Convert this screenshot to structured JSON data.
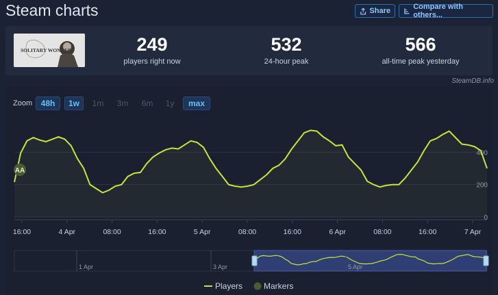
{
  "header": {
    "title": "Steam charts",
    "share_label": "Share",
    "compare_label": "Compare with others..."
  },
  "stats": [
    {
      "value": "249",
      "label": "players right now"
    },
    {
      "value": "532",
      "label": "24-hour peak"
    },
    {
      "value": "566",
      "label": "all-time peak yesterday"
    }
  ],
  "capsule": {
    "text": "SOLITARY WONDER"
  },
  "credit": "SteamDB.info",
  "zoom": {
    "label": "Zoom",
    "options": [
      "48h",
      "1w",
      "1m",
      "3m",
      "6m",
      "1y",
      "max"
    ],
    "enabled": [
      "48h",
      "1w",
      "max"
    ]
  },
  "colors": {
    "line": "#c8e43c",
    "marker": "#4a5c33",
    "accent": "#67c1f5",
    "navigator_fill": "#2f3f73"
  },
  "chart_data": {
    "type": "line",
    "x_tick_labels": [
      "16:00",
      "4 Apr",
      "08:00",
      "16:00",
      "5 Apr",
      "08:00",
      "16:00",
      "6 Apr",
      "08:00",
      "16:00",
      "7 Apr"
    ],
    "y_ticks": [
      0,
      200,
      400
    ],
    "ylim": [
      0,
      600
    ],
    "x_hours": [
      0,
      2,
      4,
      6,
      8,
      10,
      12,
      14,
      16,
      18,
      20,
      22,
      24,
      26,
      28,
      30,
      32,
      34,
      36,
      38,
      40,
      42,
      44,
      46,
      48,
      50,
      52,
      54,
      56,
      58,
      60,
      62,
      64,
      66,
      68,
      70,
      72,
      74,
      76,
      78,
      80,
      82,
      84,
      86,
      88,
      90,
      92,
      94,
      96,
      98,
      100,
      102,
      104,
      106,
      108,
      110,
      112,
      114,
      116,
      118,
      120,
      122,
      124,
      126,
      128,
      130,
      132,
      134,
      136,
      138,
      140,
      142,
      144,
      146,
      148,
      150
    ],
    "series": [
      {
        "name": "Players",
        "values": [
          215,
          395,
          470,
          490,
          475,
          465,
          480,
          495,
          480,
          440,
          360,
          300,
          200,
          175,
          150,
          165,
          190,
          200,
          250,
          270,
          275,
          330,
          370,
          395,
          415,
          425,
          420,
          445,
          470,
          460,
          430,
          360,
          300,
          250,
          200,
          190,
          185,
          190,
          200,
          230,
          260,
          300,
          320,
          360,
          420,
          470,
          520,
          535,
          530,
          495,
          470,
          440,
          445,
          370,
          330,
          290,
          220,
          200,
          185,
          195,
          200,
          200,
          240,
          290,
          340,
          410,
          470,
          485,
          510,
          530,
          490,
          450,
          445,
          435,
          410,
          300
        ]
      }
    ],
    "markers": {
      "name": "Markers",
      "label": "AA"
    },
    "navigator": {
      "tick_labels": [
        "1 Apr",
        "3 Apr",
        "5 Apr"
      ]
    },
    "legend_placement": "bottom-center",
    "grid": true
  }
}
